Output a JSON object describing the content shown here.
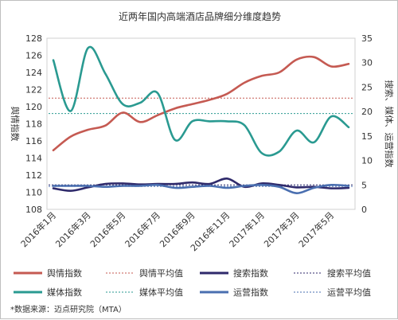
{
  "chart_data": {
    "type": "line",
    "title": "近两年国内高端酒店品牌细分维度趋势",
    "x_labels": [
      "2016年1月",
      "2016年3月",
      "2016年5月",
      "2016年7月",
      "2016年9月",
      "2016年11月",
      "2017年1月",
      "2017年3月",
      "2017年5月"
    ],
    "left_axis": {
      "label": "舆情指数",
      "ylim": [
        108,
        128
      ],
      "ticks": [
        108,
        110,
        112,
        114,
        116,
        118,
        120,
        122,
        124,
        126,
        128
      ]
    },
    "right_axis": {
      "label": "搜索、媒体、运营指数",
      "ylim": [
        0,
        35
      ],
      "ticks": [
        0,
        5,
        10,
        15,
        20,
        25,
        30,
        35
      ]
    },
    "x_month_index": [
      0,
      1,
      2,
      3,
      4,
      5,
      6,
      7,
      8,
      9,
      10,
      11,
      12,
      13,
      14,
      15,
      16,
      17
    ],
    "series": [
      {
        "name": "舆情指数",
        "axis": "left",
        "color": "#c55a52",
        "style": "solid",
        "values": [
          114.9,
          116.5,
          117.3,
          117.8,
          119.3,
          118.2,
          119.0,
          119.8,
          120.3,
          120.8,
          121.5,
          122.8,
          123.6,
          124.0,
          125.5,
          125.8,
          124.7,
          125.0
        ]
      },
      {
        "name": "舆情平均值",
        "axis": "left",
        "color": "#c55a52",
        "style": "dotted",
        "values": [
          121.0,
          121.0
        ]
      },
      {
        "name": "搜索指数",
        "axis": "right",
        "color": "#2f2a6b",
        "style": "solid",
        "values": [
          4.3,
          3.8,
          4.5,
          5.2,
          5.3,
          5.1,
          5.2,
          5.2,
          5.5,
          5.2,
          6.3,
          4.6,
          5.3,
          5.0,
          4.5,
          4.6,
          4.3,
          4.4
        ]
      },
      {
        "name": "搜索平均值",
        "axis": "right",
        "color": "#2f2a6b",
        "style": "dotted",
        "values": [
          5.0,
          5.0
        ]
      },
      {
        "name": "媒体指数",
        "axis": "right",
        "color": "#2a9a91",
        "style": "solid",
        "values": [
          30.5,
          20.1,
          33.0,
          27.7,
          21.5,
          21.8,
          23.8,
          14.2,
          18.0,
          18.0,
          18.0,
          17.2,
          11.5,
          11.8,
          16.1,
          13.7,
          19.0,
          16.8
        ]
      },
      {
        "name": "媒体平均值",
        "axis": "right",
        "color": "#2a9a91",
        "style": "dotted",
        "values": [
          19.6,
          19.6
        ]
      },
      {
        "name": "运营指数",
        "axis": "right",
        "color": "#4a6fb0",
        "style": "solid",
        "values": [
          4.8,
          4.8,
          4.8,
          4.6,
          4.8,
          4.8,
          5.0,
          4.4,
          4.6,
          4.8,
          4.4,
          4.8,
          5.0,
          4.6,
          3.3,
          4.4,
          5.0,
          4.8
        ]
      },
      {
        "name": "运营平均值",
        "axis": "right",
        "color": "#4a6fb0",
        "style": "dotted",
        "values": [
          4.7,
          4.7
        ]
      }
    ],
    "legend": [
      [
        "舆情指数",
        "舆情平均值",
        "搜索指数",
        "搜索平均值"
      ],
      [
        "媒体指数",
        "媒体平均值",
        "运营指数",
        "运营平均值"
      ]
    ],
    "source": "*数据来源：迈点研究院（MTA）"
  }
}
